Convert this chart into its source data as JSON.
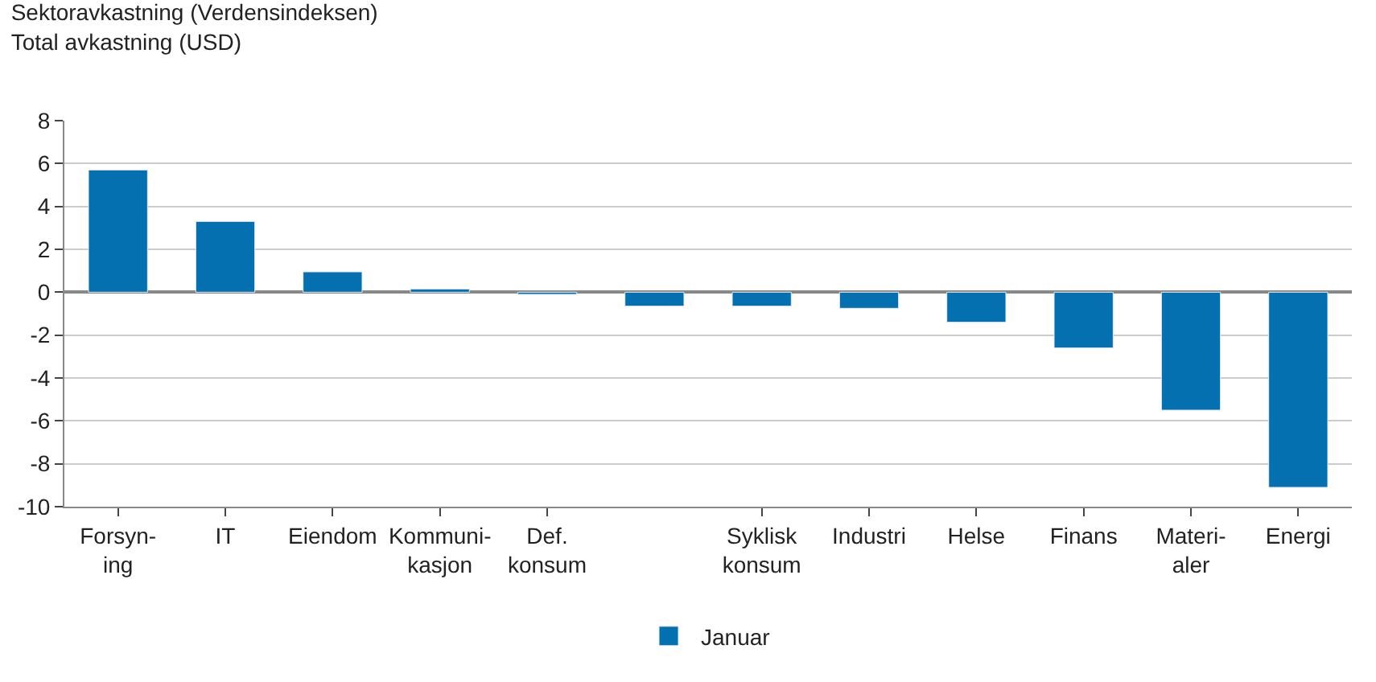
{
  "chart_data": {
    "type": "bar",
    "title": "Sektoravkastning (Verdensindeksen)",
    "subtitle": "Total avkastning (USD)",
    "categories": [
      "Forsyn-\ning",
      "IT",
      "Eiendom",
      "Kommuni-\nkasjon",
      "Def.\nkonsum",
      null,
      "Syklisk\nkonsum",
      "Industri",
      "Helse",
      "Finans",
      "Materi-\naler",
      "Energi"
    ],
    "series": [
      {
        "name": "Januar",
        "color": "#0570b0",
        "values": [
          5.7,
          3.3,
          0.95,
          0.15,
          -0.1,
          -0.65,
          -0.65,
          -0.75,
          -1.4,
          -2.6,
          -5.5,
          -9.1
        ]
      }
    ],
    "ylim": [
      -10,
      8
    ],
    "yticks": [
      -10,
      -8,
      -6,
      -4,
      -2,
      0,
      2,
      4,
      6,
      8
    ],
    "grid": "y",
    "legend": "bottom"
  }
}
